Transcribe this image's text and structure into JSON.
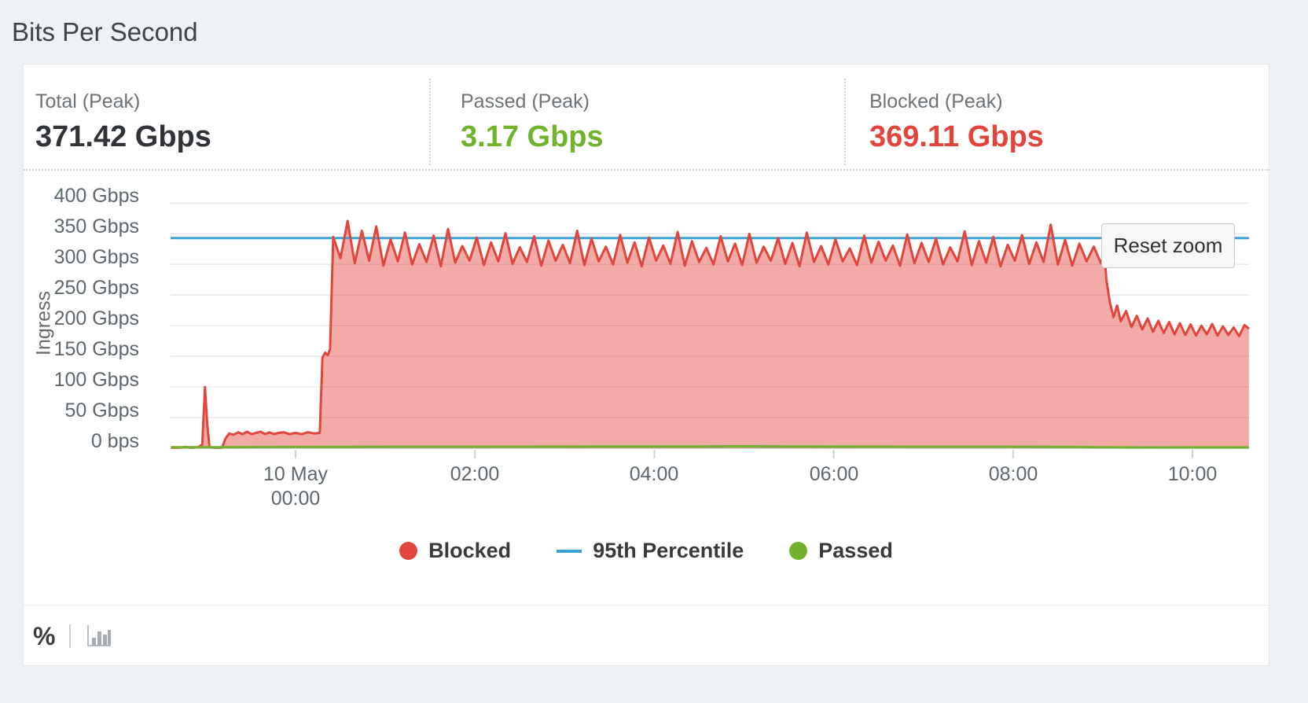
{
  "page": {
    "title": "Bits Per Second"
  },
  "stats": [
    {
      "label": "Total (Peak)",
      "value": "371.42 Gbps",
      "color": "#303438"
    },
    {
      "label": "Passed (Peak)",
      "value": "3.17 Gbps",
      "color": "#72b32d"
    },
    {
      "label": "Blocked (Peak)",
      "value": "369.11 Gbps",
      "color": "#e2453c"
    }
  ],
  "chart": {
    "reset_zoom_label": "Reset zoom"
  },
  "chart_data": {
    "type": "area",
    "ylabel": "Ingress",
    "xlabel": "",
    "y_range_gbps": [
      0,
      400
    ],
    "x_range_hours": [
      -1.39,
      10.63
    ],
    "grid": true,
    "y_ticks": [
      {
        "label": "400 Gbps",
        "value": 400
      },
      {
        "label": "350 Gbps",
        "value": 350
      },
      {
        "label": "300 Gbps",
        "value": 300
      },
      {
        "label": "250 Gbps",
        "value": 250
      },
      {
        "label": "200 Gbps",
        "value": 200
      },
      {
        "label": "150 Gbps",
        "value": 150
      },
      {
        "label": "100 Gbps",
        "value": 100
      },
      {
        "label": "50 Gbps",
        "value": 50
      },
      {
        "label": "0 bps",
        "value": 0
      }
    ],
    "x_ticks": [
      {
        "label": "10 May",
        "sublabel": "00:00",
        "hour": 0
      },
      {
        "label": "02:00",
        "hour": 2
      },
      {
        "label": "04:00",
        "hour": 4
      },
      {
        "label": "06:00",
        "hour": 6
      },
      {
        "label": "08:00",
        "hour": 8
      },
      {
        "label": "10:00",
        "hour": 10
      }
    ],
    "percentile_95_gbps": 343,
    "series": {
      "blocked": {
        "name": "Blocked",
        "color": "#e2453c",
        "fill_opacity": 0.45,
        "segments": [
          {
            "points": [
              [
                -1.39,
                1
              ],
              [
                -1.3,
                1
              ],
              [
                -1.22,
                2
              ],
              [
                -1.15,
                1
              ],
              [
                -1.08,
                2
              ],
              [
                -1.04,
                6
              ],
              [
                -1.01,
                100
              ],
              [
                -0.985,
                40
              ],
              [
                -0.96,
                2
              ],
              [
                -0.9,
                1
              ],
              [
                -0.82,
                1
              ],
              [
                -0.78,
                16
              ],
              [
                -0.74,
                24
              ],
              [
                -0.69,
                22
              ],
              [
                -0.64,
                26
              ],
              [
                -0.59,
                23
              ],
              [
                -0.54,
                27
              ],
              [
                -0.49,
                23
              ],
              [
                -0.44,
                25
              ],
              [
                -0.39,
                27
              ],
              [
                -0.34,
                23
              ],
              [
                -0.29,
                26
              ],
              [
                -0.24,
                23
              ],
              [
                -0.19,
                25
              ],
              [
                -0.13,
                26
              ],
              [
                -0.07,
                23
              ],
              [
                0.0,
                25
              ],
              [
                0.07,
                23
              ],
              [
                0.14,
                26
              ],
              [
                0.21,
                24
              ],
              [
                0.27,
                25
              ],
              [
                0.3,
                148
              ],
              [
                0.33,
                156
              ],
              [
                0.36,
                152
              ],
              [
                0.385,
                162
              ]
            ]
          },
          {
            "t_start": 0.42,
            "t_step": 0.08,
            "values": [
              345,
              310,
              371,
              302,
              355,
              306,
              362,
              298,
              341,
              305,
              352,
              300,
              333,
              304,
              347,
              297,
              358,
              303,
              330,
              306,
              344,
              299,
              336,
              305,
              351,
              301,
              328,
              304,
              346,
              298,
              339,
              306,
              332,
              302,
              355,
              299,
              342,
              305,
              329,
              300,
              348,
              303,
              336,
              297,
              344,
              306,
              331,
              301,
              353,
              298,
              338,
              304,
              327,
              300,
              346,
              305,
              334,
              299,
              350,
              303,
              329,
              306,
              343,
              301,
              335,
              297,
              352,
              304,
              330,
              300,
              341,
              305,
              326,
              299,
              347,
              303,
              337,
              306,
              331,
              298,
              349,
              302,
              335,
              304,
              342,
              300,
              328,
              305,
              354,
              299,
              338,
              303,
              345,
              297,
              332,
              306,
              348,
              301,
              336,
              304,
              365,
              300,
              340,
              298,
              334,
              305,
              329,
              302
            ]
          },
          {
            "points": [
              [
                9.02,
                318
              ],
              [
                9.04,
                275
              ],
              [
                9.08,
                238
              ],
              [
                9.12,
                214
              ],
              [
                9.16,
                233
              ],
              [
                9.2,
                207
              ],
              [
                9.26,
                224
              ],
              [
                9.32,
                198
              ],
              [
                9.38,
                216
              ],
              [
                9.44,
                194
              ],
              [
                9.5,
                212
              ],
              [
                9.56,
                190
              ],
              [
                9.62,
                208
              ],
              [
                9.68,
                188
              ],
              [
                9.74,
                206
              ],
              [
                9.8,
                186
              ],
              [
                9.86,
                204
              ],
              [
                9.92,
                185
              ],
              [
                9.98,
                202
              ],
              [
                10.04,
                184
              ],
              [
                10.1,
                200
              ],
              [
                10.16,
                186
              ],
              [
                10.22,
                203
              ],
              [
                10.28,
                184
              ],
              [
                10.34,
                199
              ],
              [
                10.4,
                185
              ],
              [
                10.46,
                197
              ],
              [
                10.52,
                183
              ],
              [
                10.58,
                201
              ],
              [
                10.63,
                195
              ]
            ]
          }
        ]
      },
      "passed": {
        "name": "Passed",
        "color": "#72b32d",
        "points": [
          [
            -1.39,
            1.6
          ],
          [
            -0.5,
            1.8
          ],
          [
            0.5,
            2.2
          ],
          [
            1.5,
            2.4
          ],
          [
            2.5,
            2.6
          ],
          [
            3.5,
            2.9
          ],
          [
            4.5,
            3.0
          ],
          [
            5.0,
            3.17
          ],
          [
            5.5,
            2.9
          ],
          [
            6.5,
            2.7
          ],
          [
            7.5,
            2.4
          ],
          [
            8.5,
            2.2
          ],
          [
            9.05,
            1.5
          ],
          [
            9.5,
            1.3
          ],
          [
            10.0,
            1.4
          ],
          [
            10.63,
            1.4
          ]
        ]
      }
    },
    "legend": [
      {
        "label": "Blocked",
        "marker": "dot",
        "color": "#e2453c"
      },
      {
        "label": "95th Percentile",
        "marker": "line",
        "color": "#3aa2d4"
      },
      {
        "label": "Passed",
        "marker": "dot",
        "color": "#72b32d"
      }
    ],
    "colors": {
      "gridline": "#e8e9eb",
      "baseline": "#d0d6da",
      "tick_mark": "#c6d3dc",
      "percentile_line": "#3aa2d4"
    }
  },
  "footer": {
    "percent_label": "%",
    "divider": "|"
  }
}
